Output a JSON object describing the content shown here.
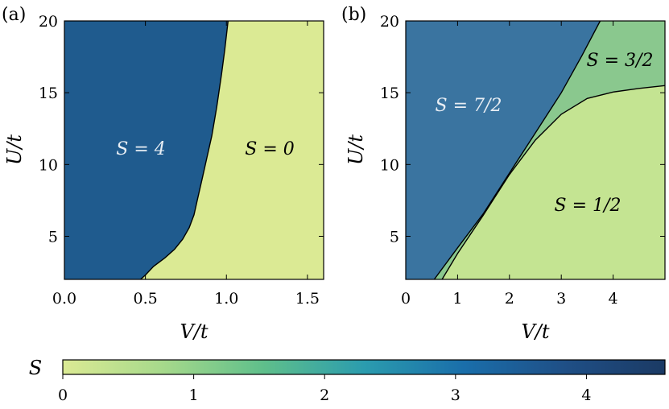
{
  "chart_data": [
    {
      "panel_label": "(a)",
      "type": "area",
      "xlabel": "V/t",
      "ylabel": "U/t",
      "xlim": [
        0.0,
        1.6
      ],
      "ylim": [
        2,
        20
      ],
      "xticks": [
        "0.0",
        "0.5",
        "1.0",
        "1.5"
      ],
      "xtick_values": [
        0.0,
        0.5,
        1.0,
        1.5
      ],
      "yticks": [
        "5",
        "10",
        "15",
        "20"
      ],
      "ytick_values": [
        5,
        10,
        15,
        20
      ],
      "boundary": {
        "x": [
          0.47,
          0.5,
          0.55,
          0.62,
          0.68,
          0.73,
          0.77,
          0.8,
          0.82,
          0.85,
          0.88,
          0.91,
          0.94,
          0.97,
          0.99,
          1.01
        ],
        "y": [
          2,
          2.3,
          2.9,
          3.5,
          4.1,
          4.8,
          5.6,
          6.5,
          7.5,
          9,
          10.5,
          12,
          14,
          16.3,
          18,
          20
        ]
      },
      "regions": [
        {
          "label": "S = 4",
          "value": 4,
          "color": "#1f5b8e"
        },
        {
          "label": "S = 0",
          "value": 0,
          "color": "#dbea94"
        }
      ]
    },
    {
      "panel_label": "(b)",
      "type": "area",
      "xlabel": "V/t",
      "ylabel": "U/t",
      "xlim": [
        0,
        5
      ],
      "ylim": [
        2,
        20
      ],
      "xticks": [
        "0",
        "1",
        "2",
        "3",
        "4"
      ],
      "xtick_values": [
        0,
        1,
        2,
        3,
        4
      ],
      "yticks": [
        "5",
        "10",
        "15",
        "20"
      ],
      "ytick_values": [
        5,
        10,
        15,
        20
      ],
      "boundary_upper": {
        "x": [
          0.55,
          1.0,
          1.5,
          2.0,
          2.5,
          3.0,
          3.4,
          3.75
        ],
        "y": [
          2,
          4.2,
          6.6,
          9.4,
          12.2,
          15.0,
          17.6,
          20
        ]
      },
      "boundary_lower": {
        "x": [
          0.7,
          1.0,
          1.5,
          2.0,
          2.5,
          3.0,
          3.5,
          4.0,
          4.5,
          5.0
        ],
        "y": [
          2,
          3.8,
          6.5,
          9.3,
          11.7,
          13.5,
          14.6,
          15.05,
          15.3,
          15.5
        ]
      },
      "regions": [
        {
          "label": "S = 7/2",
          "value": 3.5,
          "color": "#3a74a0"
        },
        {
          "label": "S = 3/2",
          "value": 1.5,
          "color": "#8ac88e"
        },
        {
          "label": "S = 1/2",
          "value": 0.5,
          "color": "#c4e492"
        }
      ]
    }
  ],
  "colorbar": {
    "label": "S",
    "min": 0,
    "max": 4.6,
    "ticks": [
      "0",
      "1",
      "2",
      "3",
      "4"
    ],
    "tick_values": [
      0,
      1,
      2,
      3,
      4
    ],
    "colors": [
      "#dbea94",
      "#a6d98b",
      "#5fbf8b",
      "#2b9cae",
      "#1a6eaa",
      "#1f4f86",
      "#1b3a64"
    ]
  }
}
